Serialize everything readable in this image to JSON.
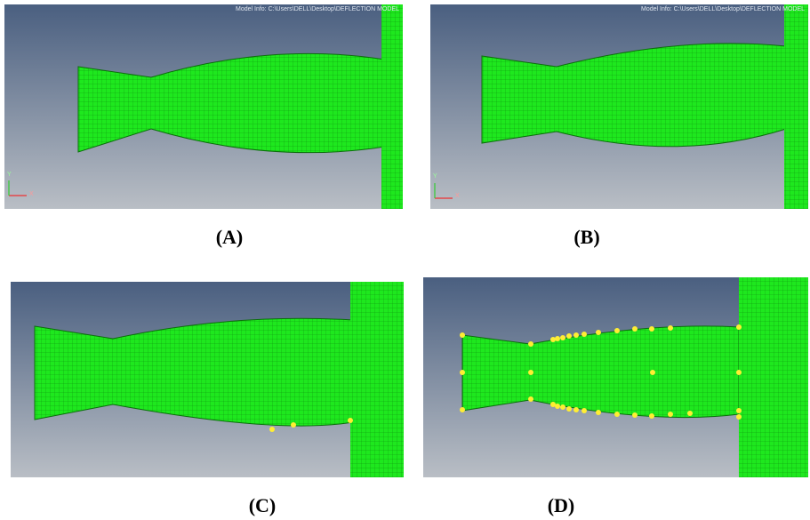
{
  "panels": [
    {
      "id": "A",
      "caption": "(A)",
      "model_info": "Model Info: C:\\Users\\DELL\\Desktop\\DEFLECTION MODEL",
      "show_axes": true,
      "axis_x": "X",
      "axis_y": "Y"
    },
    {
      "id": "B",
      "caption": "(B)",
      "model_info": "Model Info: C:\\Users\\DELL\\Desktop\\DEFLECTION MODEL",
      "show_axes": true,
      "axis_x": "X",
      "axis_y": "Y"
    },
    {
      "id": "C",
      "caption": "(C)",
      "model_info": "",
      "show_axes": false
    },
    {
      "id": "D",
      "caption": "(D)",
      "model_info": "",
      "show_axes": false
    }
  ],
  "colors": {
    "mesh_fill": "#1ee81e",
    "mesh_line": "#0e8f0e",
    "background_top": "#4a5f80",
    "background_bottom": "#b9bec5",
    "node_marker": "#ffee33"
  }
}
